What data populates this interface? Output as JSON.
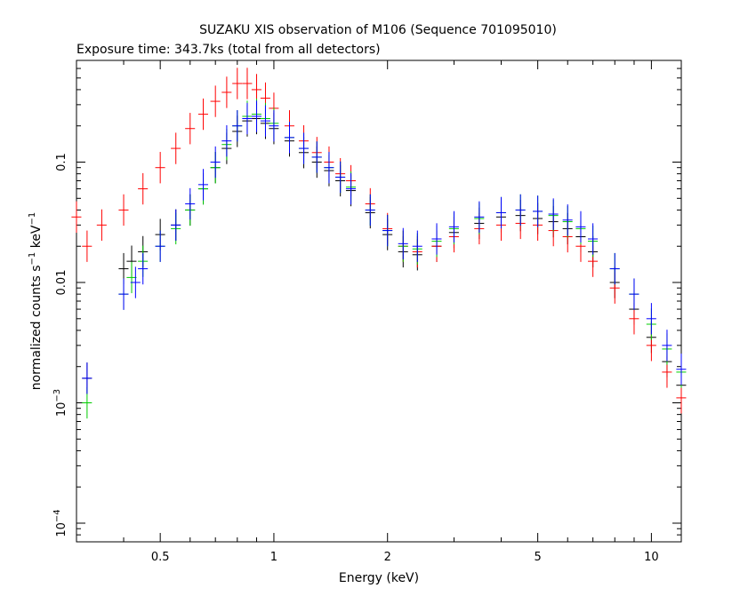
{
  "chart_data": {
    "type": "scatter",
    "title": "SUZAKU XIS observation of M106 (Sequence 701095010)",
    "subtitle": "Exposure time: 343.7ks (total from all detectors)",
    "xlabel": "Energy (keV)",
    "ylabel": {
      "prefix": "normalized counts s",
      "sup1": "−1",
      "middle": " keV",
      "sup2": "−1"
    },
    "x_scale": "log",
    "y_scale": "log",
    "xlim": [
      0.3,
      12.0
    ],
    "ylim": [
      7e-05,
      0.7
    ],
    "x_ticks": [
      {
        "value": 0.5,
        "label": "0.5"
      },
      {
        "value": 1,
        "label": "1"
      },
      {
        "value": 2,
        "label": "2"
      },
      {
        "value": 5,
        "label": "5"
      },
      {
        "value": 10,
        "label": "10"
      }
    ],
    "y_ticks": [
      {
        "value": 0.1,
        "label": "0.1",
        "sup": ""
      },
      {
        "value": 0.01,
        "label": "0.01",
        "sup": ""
      },
      {
        "value": 0.001,
        "label": "10",
        "sup": "−3"
      },
      {
        "value": 0.0001,
        "label": "10",
        "sup": "−4"
      }
    ],
    "grid": false,
    "legend": "none",
    "series": [
      {
        "color": "#000000",
        "points": [
          [
            0.32,
            0.0016
          ],
          [
            0.4,
            0.013
          ],
          [
            0.42,
            0.015
          ],
          [
            0.45,
            0.018
          ],
          [
            0.5,
            0.025
          ],
          [
            0.55,
            0.03
          ],
          [
            0.6,
            0.04
          ],
          [
            0.65,
            0.06
          ],
          [
            0.7,
            0.09
          ],
          [
            0.75,
            0.13
          ],
          [
            0.8,
            0.18
          ],
          [
            0.85,
            0.22
          ],
          [
            0.9,
            0.23
          ],
          [
            0.95,
            0.21
          ],
          [
            1.0,
            0.19
          ],
          [
            1.1,
            0.15
          ],
          [
            1.2,
            0.12
          ],
          [
            1.3,
            0.1
          ],
          [
            1.4,
            0.085
          ],
          [
            1.5,
            0.07
          ],
          [
            1.6,
            0.058
          ],
          [
            1.8,
            0.038
          ],
          [
            2.0,
            0.025
          ],
          [
            2.2,
            0.018
          ],
          [
            2.4,
            0.017
          ],
          [
            2.7,
            0.02
          ],
          [
            3.0,
            0.026
          ],
          [
            3.5,
            0.031
          ],
          [
            4.0,
            0.035
          ],
          [
            4.5,
            0.036
          ],
          [
            5.0,
            0.034
          ],
          [
            5.5,
            0.032
          ],
          [
            6.0,
            0.028
          ],
          [
            6.5,
            0.024
          ],
          [
            7.0,
            0.018
          ],
          [
            8.0,
            0.01
          ],
          [
            9.0,
            0.006
          ],
          [
            10.0,
            0.0035
          ],
          [
            11.0,
            0.0022
          ],
          [
            12.0,
            0.0014
          ]
        ]
      },
      {
        "color": "#ff0000",
        "points": [
          [
            0.3,
            0.035
          ],
          [
            0.32,
            0.02
          ],
          [
            0.35,
            0.03
          ],
          [
            0.4,
            0.04
          ],
          [
            0.45,
            0.06
          ],
          [
            0.5,
            0.09
          ],
          [
            0.55,
            0.13
          ],
          [
            0.6,
            0.19
          ],
          [
            0.65,
            0.25
          ],
          [
            0.7,
            0.32
          ],
          [
            0.75,
            0.38
          ],
          [
            0.8,
            0.45
          ],
          [
            0.85,
            0.45
          ],
          [
            0.9,
            0.4
          ],
          [
            0.95,
            0.34
          ],
          [
            1.0,
            0.28
          ],
          [
            1.1,
            0.2
          ],
          [
            1.2,
            0.15
          ],
          [
            1.3,
            0.12
          ],
          [
            1.4,
            0.1
          ],
          [
            1.5,
            0.08
          ],
          [
            1.6,
            0.07
          ],
          [
            1.8,
            0.045
          ],
          [
            2.0,
            0.028
          ],
          [
            2.2,
            0.02
          ],
          [
            2.4,
            0.018
          ],
          [
            2.7,
            0.02
          ],
          [
            3.0,
            0.024
          ],
          [
            3.5,
            0.028
          ],
          [
            4.0,
            0.03
          ],
          [
            4.5,
            0.031
          ],
          [
            5.0,
            0.03
          ],
          [
            5.5,
            0.027
          ],
          [
            6.0,
            0.024
          ],
          [
            6.5,
            0.02
          ],
          [
            7.0,
            0.015
          ],
          [
            8.0,
            0.009
          ],
          [
            9.0,
            0.005
          ],
          [
            10.0,
            0.003
          ],
          [
            11.0,
            0.0018
          ],
          [
            12.0,
            0.0011
          ]
        ]
      },
      {
        "color": "#00cc00",
        "points": [
          [
            0.32,
            0.001
          ],
          [
            0.4,
            0.008
          ],
          [
            0.42,
            0.011
          ],
          [
            0.45,
            0.015
          ],
          [
            0.5,
            0.02
          ],
          [
            0.55,
            0.028
          ],
          [
            0.6,
            0.04
          ],
          [
            0.65,
            0.06
          ],
          [
            0.7,
            0.09
          ],
          [
            0.75,
            0.14
          ],
          [
            0.8,
            0.2
          ],
          [
            0.85,
            0.24
          ],
          [
            0.9,
            0.25
          ],
          [
            0.95,
            0.23
          ],
          [
            1.0,
            0.21
          ],
          [
            1.1,
            0.16
          ],
          [
            1.2,
            0.13
          ],
          [
            1.3,
            0.11
          ],
          [
            1.4,
            0.09
          ],
          [
            1.5,
            0.075
          ],
          [
            1.6,
            0.062
          ],
          [
            1.8,
            0.04
          ],
          [
            2.0,
            0.027
          ],
          [
            2.2,
            0.02
          ],
          [
            2.4,
            0.019
          ],
          [
            2.7,
            0.022
          ],
          [
            3.0,
            0.028
          ],
          [
            3.5,
            0.034
          ],
          [
            4.0,
            0.038
          ],
          [
            4.5,
            0.04
          ],
          [
            5.0,
            0.039
          ],
          [
            5.5,
            0.036
          ],
          [
            6.0,
            0.032
          ],
          [
            6.5,
            0.028
          ],
          [
            7.0,
            0.022
          ],
          [
            8.0,
            0.013
          ],
          [
            9.0,
            0.008
          ],
          [
            10.0,
            0.0045
          ],
          [
            11.0,
            0.0028
          ],
          [
            12.0,
            0.0018
          ]
        ]
      },
      {
        "color": "#0000ff",
        "points": [
          [
            0.32,
            0.0016
          ],
          [
            0.4,
            0.008
          ],
          [
            0.43,
            0.01
          ],
          [
            0.45,
            0.013
          ],
          [
            0.5,
            0.02
          ],
          [
            0.55,
            0.03
          ],
          [
            0.6,
            0.045
          ],
          [
            0.65,
            0.065
          ],
          [
            0.7,
            0.1
          ],
          [
            0.75,
            0.15
          ],
          [
            0.8,
            0.2
          ],
          [
            0.85,
            0.23
          ],
          [
            0.9,
            0.24
          ],
          [
            0.95,
            0.22
          ],
          [
            1.0,
            0.2
          ],
          [
            1.1,
            0.16
          ],
          [
            1.2,
            0.13
          ],
          [
            1.3,
            0.11
          ],
          [
            1.4,
            0.09
          ],
          [
            1.5,
            0.075
          ],
          [
            1.6,
            0.06
          ],
          [
            1.8,
            0.04
          ],
          [
            2.0,
            0.027
          ],
          [
            2.2,
            0.021
          ],
          [
            2.4,
            0.02
          ],
          [
            2.7,
            0.023
          ],
          [
            3.0,
            0.029
          ],
          [
            3.5,
            0.035
          ],
          [
            4.0,
            0.038
          ],
          [
            4.5,
            0.04
          ],
          [
            5.0,
            0.039
          ],
          [
            5.5,
            0.037
          ],
          [
            6.0,
            0.033
          ],
          [
            6.5,
            0.029
          ],
          [
            7.0,
            0.023
          ],
          [
            8.0,
            0.013
          ],
          [
            9.0,
            0.008
          ],
          [
            10.0,
            0.005
          ],
          [
            11.0,
            0.003
          ],
          [
            12.0,
            0.0019
          ]
        ]
      }
    ]
  }
}
